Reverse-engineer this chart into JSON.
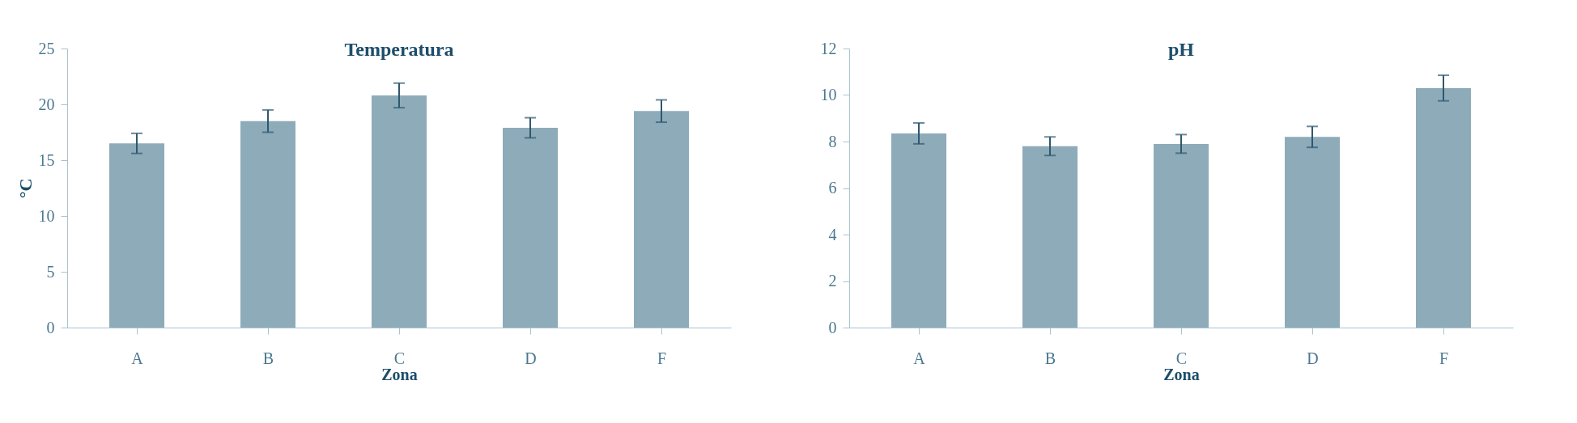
{
  "chart_data": [
    {
      "type": "bar",
      "title": "Temperatura",
      "xlabel": "Zona",
      "ylabel": "°C",
      "categories": [
        "A",
        "B",
        "C",
        "D",
        "F"
      ],
      "grid": false,
      "series": [
        {
          "color": "#8eabb9",
          "values": [
            16.5,
            18.5,
            20.8,
            17.9,
            19.4
          ],
          "errors": [
            0.9,
            1.0,
            1.1,
            0.9,
            1.0
          ]
        }
      ],
      "ylim": [
        0,
        25
      ],
      "yticks": [
        0,
        5,
        10,
        15,
        20,
        25
      ]
    },
    {
      "type": "bar",
      "title": "pH",
      "xlabel": "Zona",
      "categories": [
        "A",
        "B",
        "C",
        "D",
        "F"
      ],
      "grid": false,
      "series": [
        {
          "color": "#8eabb9",
          "values": [
            8.35,
            7.8,
            7.9,
            8.2,
            10.3
          ],
          "errors": [
            0.45,
            0.4,
            0.4,
            0.45,
            0.55
          ]
        }
      ],
      "ylim": [
        0,
        12
      ],
      "yticks": [
        0,
        2,
        4,
        6,
        8,
        10,
        12
      ]
    }
  ]
}
